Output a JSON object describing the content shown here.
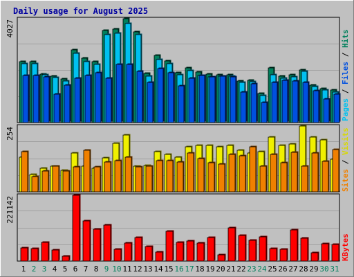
{
  "chart_data": {
    "type": "bar",
    "title": "Daily usage for August 2025",
    "categories": [
      "1",
      "2",
      "3",
      "4",
      "5",
      "6",
      "7",
      "8",
      "9",
      "10",
      "11",
      "12",
      "13",
      "14",
      "15",
      "16",
      "17",
      "18",
      "19",
      "20",
      "21",
      "22",
      "23",
      "24",
      "25",
      "26",
      "27",
      "28",
      "29",
      "30",
      "31"
    ],
    "weekend_days": [
      2,
      3,
      9,
      10,
      16,
      17,
      23,
      24,
      30,
      31
    ],
    "panels": [
      {
        "name": "hits-files-pages",
        "ymax_label": "4027",
        "ylim": [
          0,
          4027
        ],
        "legend": [
          "Pages",
          "/",
          "Files",
          "/",
          "Hits"
        ],
        "series": [
          {
            "name": "Hits",
            "color": "#00805c",
            "values": [
              2350,
              2350,
              1890,
              1810,
              1690,
              2830,
              2500,
              2360,
              3580,
              3630,
              4027,
              3530,
              1900,
              2610,
              2390,
              1930,
              2110,
              1960,
              1870,
              1860,
              1860,
              1620,
              1630,
              1120,
              2110,
              1790,
              1860,
              2040,
              1450,
              1320,
              1250
            ]
          },
          {
            "name": "Files",
            "color": "#00c0f0",
            "values": [
              2280,
              2280,
              1840,
              1740,
              1610,
              2680,
              2360,
              2260,
              3410,
              3470,
              3840,
              3400,
              1800,
              2440,
              2280,
              1840,
              2020,
              1820,
              1770,
              1790,
              1790,
              1560,
              1580,
              1060,
              1840,
              1710,
              1770,
              1980,
              1390,
              1270,
              1170
            ]
          },
          {
            "name": "Pages",
            "color": "#0050e0",
            "values": [
              1830,
              1830,
              1770,
              1100,
              1460,
              1730,
              1820,
              1930,
              1710,
              2260,
              2250,
              1990,
              1570,
              2090,
              1940,
              1420,
              1730,
              1830,
              1780,
              1790,
              1780,
              1170,
              1490,
              780,
              1560,
              1630,
              1620,
              1560,
              1240,
              920,
              1100
            ]
          }
        ]
      },
      {
        "name": "visits-sites",
        "ymax_label": "254",
        "ylim": [
          0,
          254
        ],
        "legend": [
          "Sites",
          "/",
          "Visits"
        ],
        "series": [
          {
            "name": "Visits",
            "color": "#f0f000",
            "values": [
              135,
              68,
              90,
              100,
              82,
              150,
              100,
              90,
              130,
              187,
              218,
              100,
              102,
              155,
              145,
              135,
              175,
              180,
              178,
              174,
              178,
              160,
              150,
              155,
              211,
              180,
              185,
              254,
              210,
              200,
              125
            ]
          },
          {
            "name": "Sites",
            "color": "#f08000",
            "values": [
              155,
              60,
              80,
              98,
              80,
              95,
              160,
              95,
              115,
              120,
              135,
              95,
              100,
              120,
              120,
              115,
              150,
              128,
              112,
              108,
              145,
              138,
              175,
              100,
              145,
              112,
              152,
              98,
              150,
              118,
              162
            ]
          }
        ]
      },
      {
        "name": "kbytes",
        "ymax_label": "221142",
        "ylim": [
          0,
          221142
        ],
        "legend": [
          "KBytes"
        ],
        "series": [
          {
            "name": "KBytes",
            "color": "#ff0000",
            "values": [
              45000,
              43000,
              64000,
              38000,
              17000,
              221142,
              134000,
              108000,
              122000,
              39000,
              61000,
              79000,
              48000,
              31000,
              100000,
              63000,
              68000,
              60000,
              80000,
              20000,
              111000,
              87000,
              70000,
              81000,
              43000,
              40000,
              104000,
              76000,
              28000,
              58000,
              55000
            ]
          }
        ]
      }
    ]
  }
}
